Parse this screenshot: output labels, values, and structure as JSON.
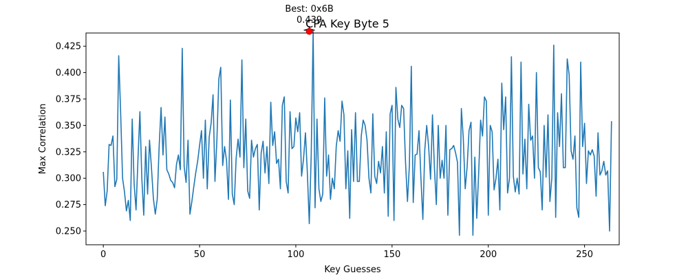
{
  "chart_data": {
    "type": "line",
    "title": "CPA Key Byte 5",
    "xlabel": "Key Guesses",
    "ylabel": "Max Correlation",
    "xlim": [
      -9,
      268
    ],
    "ylim": [
      0.237,
      0.4375
    ],
    "xticks": [
      0,
      50,
      100,
      150,
      200,
      250
    ],
    "xtick_labels": [
      "0",
      "50",
      "100",
      "150",
      "200",
      "250"
    ],
    "yticks": [
      0.25,
      0.275,
      0.3,
      0.325,
      0.35,
      0.375,
      0.4,
      0.425
    ],
    "ytick_labels": [
      "0.250",
      "0.275",
      "0.300",
      "0.325",
      "0.350",
      "0.375",
      "0.400",
      "0.425"
    ],
    "grid": false,
    "series_color": "#1f77b4",
    "highlight_color": "#ff0000",
    "annotation": {
      "line1": "Best: 0x6B",
      "line2": "0.439",
      "x": 107,
      "y": 0.439
    },
    "series": [
      {
        "values": [
          0.306,
          0.274,
          0.288,
          0.332,
          0.331,
          0.34,
          0.292,
          0.299,
          0.416,
          0.362,
          0.3,
          0.287,
          0.269,
          0.279,
          0.26,
          0.356,
          0.295,
          0.27,
          0.318,
          0.363,
          0.3,
          0.265,
          0.33,
          0.285,
          0.336,
          0.31,
          0.281,
          0.266,
          0.28,
          0.33,
          0.367,
          0.322,
          0.358,
          0.308,
          0.304,
          0.298,
          0.296,
          0.291,
          0.313,
          0.322,
          0.308,
          0.423,
          0.311,
          0.296,
          0.336,
          0.266,
          0.278,
          0.292,
          0.305,
          0.316,
          0.331,
          0.345,
          0.3,
          0.355,
          0.29,
          0.339,
          0.352,
          0.379,
          0.297,
          0.336,
          0.394,
          0.405,
          0.312,
          0.33,
          0.317,
          0.28,
          0.374,
          0.285,
          0.275,
          0.319,
          0.337,
          0.32,
          0.412,
          0.31,
          0.356,
          0.288,
          0.281,
          0.336,
          0.32,
          0.328,
          0.332,
          0.27,
          0.324,
          0.335,
          0.305,
          0.33,
          0.295,
          0.372,
          0.331,
          0.344,
          0.314,
          0.318,
          0.29,
          0.369,
          0.377,
          0.297,
          0.286,
          0.363,
          0.328,
          0.33,
          0.357,
          0.344,
          0.362,
          0.302,
          0.318,
          0.343,
          0.305,
          0.257,
          0.322,
          0.439,
          0.272,
          0.356,
          0.29,
          0.278,
          0.285,
          0.376,
          0.302,
          0.322,
          0.28,
          0.3,
          0.29,
          0.33,
          0.345,
          0.335,
          0.373,
          0.36,
          0.29,
          0.326,
          0.262,
          0.346,
          0.297,
          0.362,
          0.297,
          0.297,
          0.34,
          0.355,
          0.35,
          0.336,
          0.3,
          0.286,
          0.361,
          0.302,
          0.295,
          0.316,
          0.305,
          0.33,
          0.286,
          0.344,
          0.264,
          0.361,
          0.369,
          0.26,
          0.386,
          0.356,
          0.348,
          0.369,
          0.366,
          0.315,
          0.278,
          0.312,
          0.406,
          0.277,
          0.322,
          0.323,
          0.345,
          0.3,
          0.261,
          0.327,
          0.35,
          0.33,
          0.299,
          0.36,
          0.31,
          0.275,
          0.35,
          0.3,
          0.317,
          0.3,
          0.35,
          0.265,
          0.327,
          0.328,
          0.331,
          0.324,
          0.315,
          0.246,
          0.366,
          0.338,
          0.29,
          0.311,
          0.345,
          0.353,
          0.246,
          0.32,
          0.262,
          0.305,
          0.355,
          0.34,
          0.377,
          0.373,
          0.265,
          0.35,
          0.344,
          0.289,
          0.3,
          0.318,
          0.27,
          0.39,
          0.346,
          0.377,
          0.286,
          0.3,
          0.415,
          0.302,
          0.287,
          0.3,
          0.285,
          0.41,
          0.304,
          0.337,
          0.29,
          0.37,
          0.336,
          0.34,
          0.3,
          0.4,
          0.31,
          0.306,
          0.27,
          0.35,
          0.301,
          0.36,
          0.278,
          0.3,
          0.426,
          0.263,
          0.362,
          0.33,
          0.38,
          0.31,
          0.31,
          0.413,
          0.398,
          0.326,
          0.318,
          0.34,
          0.272,
          0.263,
          0.41,
          0.33,
          0.352,
          0.295,
          0.326,
          0.322,
          0.327,
          0.321,
          0.283,
          0.343,
          0.303,
          0.307,
          0.316,
          0.303,
          0.307,
          0.25,
          0.354
        ]
      }
    ]
  }
}
